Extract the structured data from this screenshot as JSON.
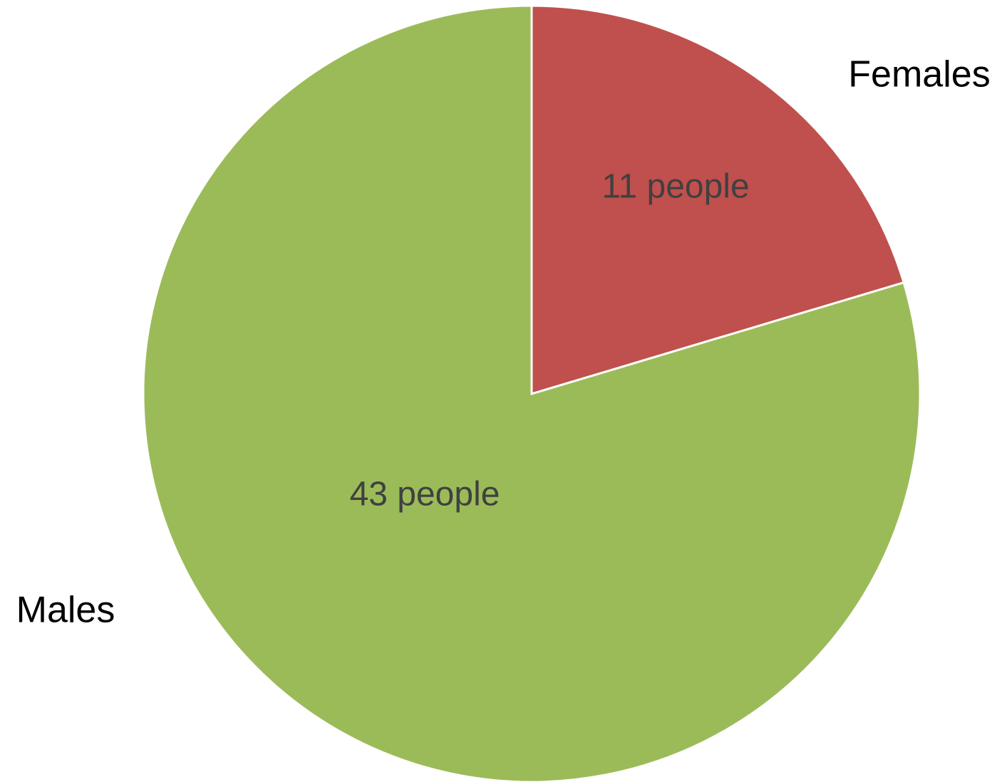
{
  "chart_data": {
    "type": "pie",
    "slices": [
      {
        "label": "Females",
        "value": 11,
        "data_label": "11 people",
        "color": "#C0504D"
      },
      {
        "label": "Males",
        "value": 43,
        "data_label": "43 people",
        "color": "#9BBB59"
      }
    ],
    "start": "12 o'clock",
    "direction": "clockwise",
    "legend": "none",
    "slice_border_color": "#FFFFFF"
  }
}
